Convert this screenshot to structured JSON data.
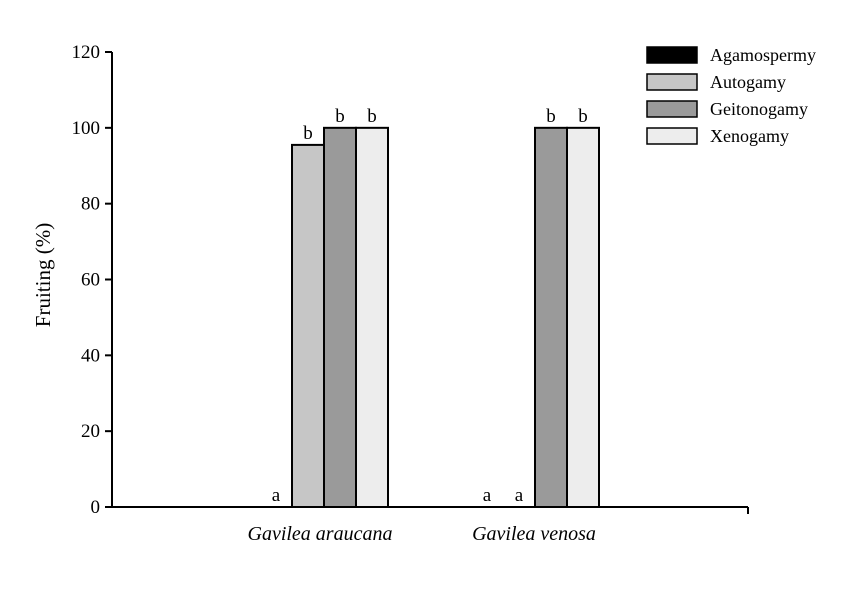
{
  "chart_data": {
    "type": "bar",
    "ylabel": "Fruiting (%)",
    "ylim": [
      0,
      120
    ],
    "yticks": [
      "0",
      "20",
      "40",
      "60",
      "80",
      "100",
      "120"
    ],
    "categories": [
      "Gavilea araucana",
      "Gavilea venosa"
    ],
    "legend_position": "top-right",
    "grid": false,
    "series": [
      {
        "name": "Agamospermy",
        "color": "#000000",
        "values": [
          0,
          0
        ],
        "labels": [
          "",
          "a"
        ]
      },
      {
        "name": "Autogamy",
        "color": "#c6c6c6",
        "values": [
          95.5,
          0
        ],
        "labels": [
          "b",
          "a"
        ]
      },
      {
        "name": "Geitonogamy",
        "color": "#9a9a9a",
        "values": [
          100,
          100
        ],
        "labels": [
          "b",
          "b"
        ]
      },
      {
        "name": "Xenogamy",
        "color": "#ededed",
        "values": [
          100,
          100
        ],
        "labels": [
          "b",
          "b"
        ]
      }
    ],
    "extra_labels": [
      {
        "category": 0,
        "series": 0,
        "text": "a"
      }
    ]
  }
}
